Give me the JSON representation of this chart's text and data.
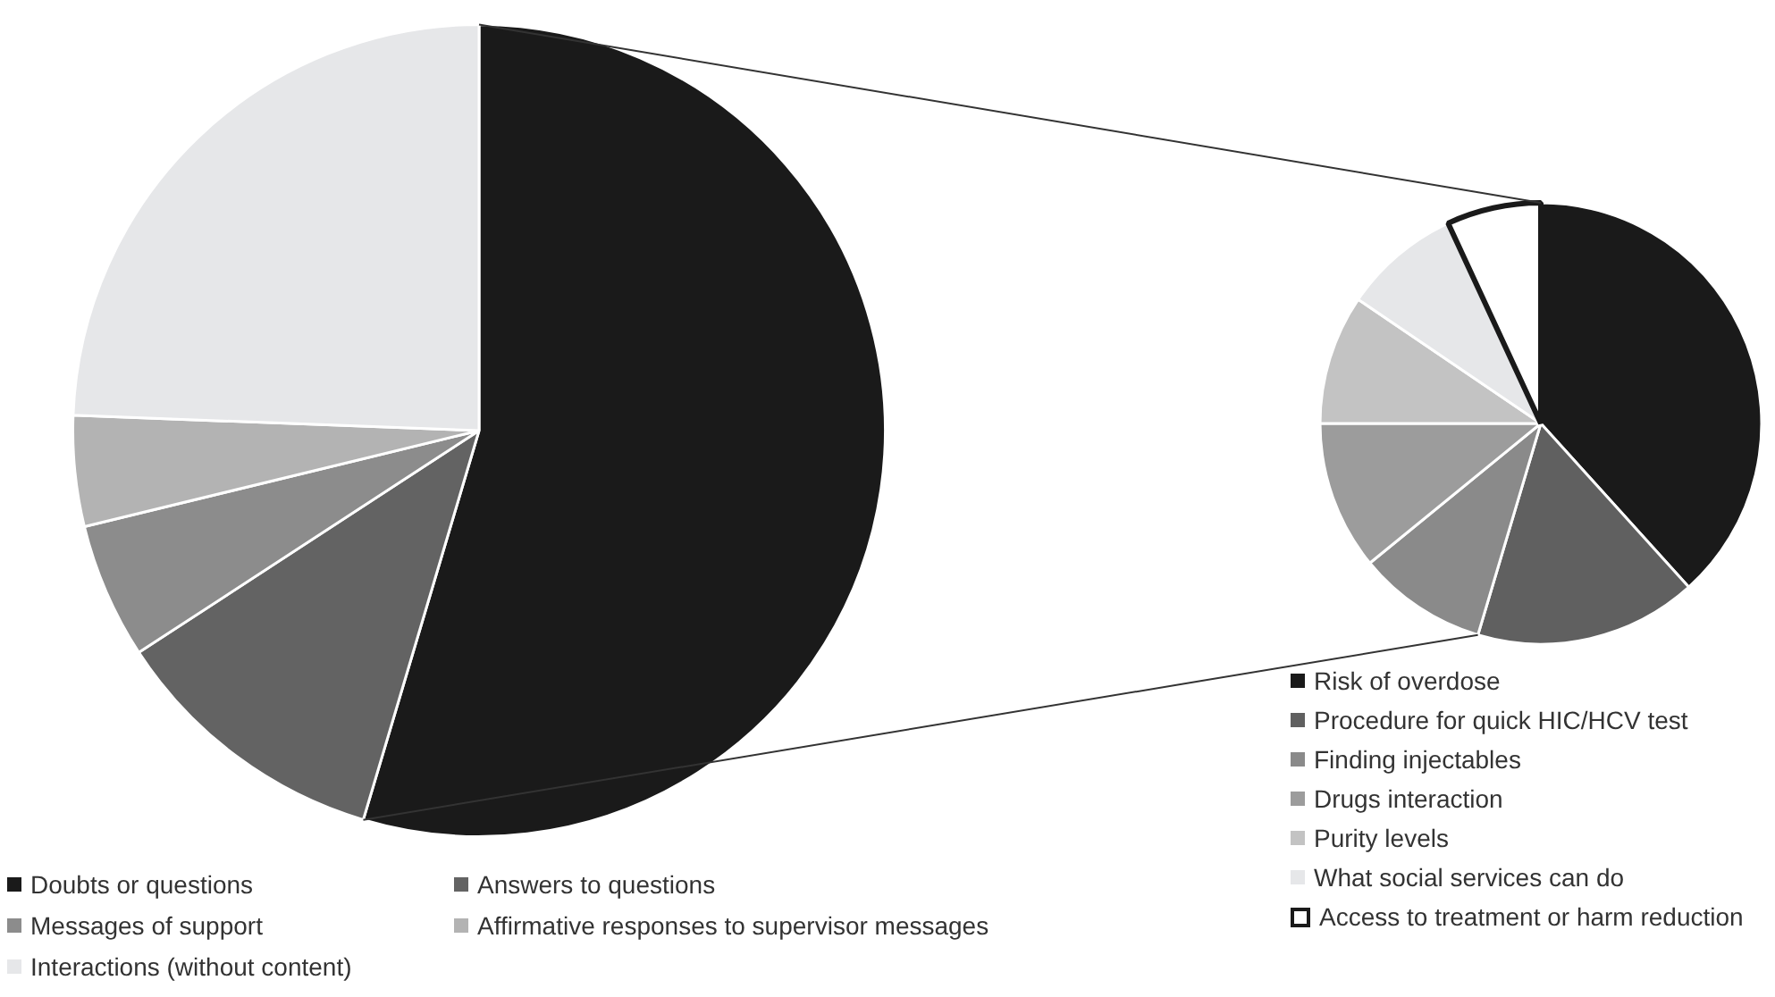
{
  "chart_data": [
    {
      "type": "pie",
      "categories": [
        "Doubts or questions",
        "Answers to questions",
        "Messages of support",
        "Affirmative responses to supervisor messages",
        "Interactions (without content)"
      ],
      "values": [
        54.6,
        11.2,
        5.4,
        4.4,
        24.4
      ],
      "colors": [
        "#1a1a1a",
        "#636363",
        "#8c8c8c",
        "#b3b3b3",
        "#e6e7e9"
      ],
      "legend": "bottom left"
    },
    {
      "type": "pie",
      "categories": [
        "Risk of overdose",
        "Procedure for quick HIC/HCV test",
        "Finding injectables",
        "Drugs interaction",
        "Purity levels",
        "What social services can do",
        "Access to treatment or harm reduction"
      ],
      "values": [
        38.3,
        16.3,
        9.5,
        10.9,
        9.5,
        8.6,
        6.9
      ],
      "colors": [
        "#1a1a1a",
        "#606060",
        "#8a8a8a",
        "#9c9c9c",
        "#c3c3c3",
        "#e6e7e9",
        "#ffffff"
      ],
      "legend": "bottom"
    }
  ]
}
